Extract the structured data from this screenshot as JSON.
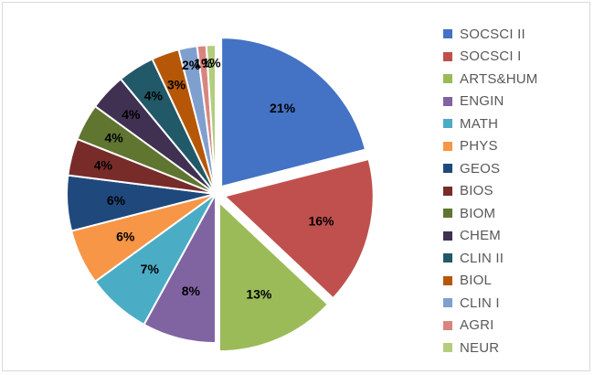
{
  "chart_data": {
    "type": "pie",
    "unit": "%",
    "legend_position": "right",
    "slices": [
      {
        "label": "SOCSCI II",
        "value": 21,
        "display": "21%",
        "color": "#4472C4"
      },
      {
        "label": "SOCSCI I",
        "value": 16,
        "display": "16%",
        "color": "#C0504D"
      },
      {
        "label": "ARTS&HUM",
        "value": 13,
        "display": "13%",
        "color": "#9BBB59"
      },
      {
        "label": "ENGIN",
        "value": 8,
        "display": "8%",
        "color": "#8064A2"
      },
      {
        "label": "MATH",
        "value": 7,
        "display": "7%",
        "color": "#4BACC6"
      },
      {
        "label": "PHYS",
        "value": 6,
        "display": "6%",
        "color": "#F79646"
      },
      {
        "label": "GEOS",
        "value": 6,
        "display": "6%",
        "color": "#1F497D"
      },
      {
        "label": "BIOS",
        "value": 4,
        "display": "4%",
        "color": "#772C2A"
      },
      {
        "label": "BIOM",
        "value": 4,
        "display": "4%",
        "color": "#5F7530"
      },
      {
        "label": "CHEM",
        "value": 4,
        "display": "4%",
        "color": "#403152"
      },
      {
        "label": "CLIN II",
        "value": 4,
        "display": "4%",
        "color": "#215968"
      },
      {
        "label": "BIOL",
        "value": 3,
        "display": "3%",
        "color": "#B65708"
      },
      {
        "label": "CLIN I",
        "value": 2,
        "display": "2%",
        "color": "#7F9FCF"
      },
      {
        "label": "AGRI",
        "value": 1,
        "display": "1%",
        "color": "#D8857F"
      },
      {
        "label": "NEUR",
        "value": 1,
        "display": "1%",
        "color": "#B3CD7D"
      }
    ]
  }
}
